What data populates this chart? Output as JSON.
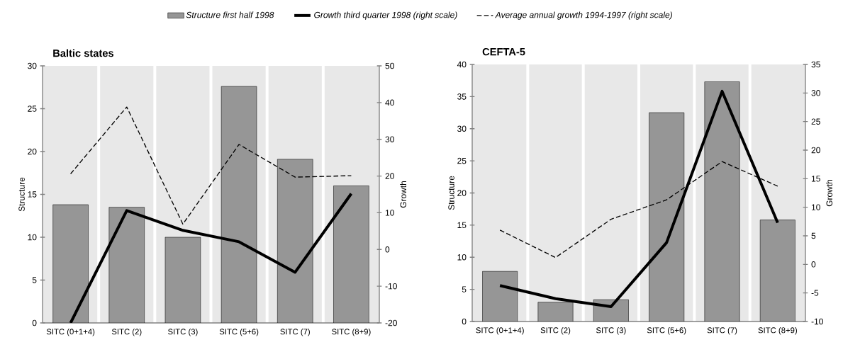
{
  "chart_data": [
    {
      "type": "bar",
      "title": "Baltic states",
      "categories": [
        "SITC (0+1+4)",
        "SITC (2)",
        "SITC (3)",
        "SITC (5+6)",
        "SITC (7)",
        "SITC (8+9)"
      ],
      "ylabel": "Structure",
      "y2label": "Growth",
      "ylim": [
        0,
        30
      ],
      "yticks": [
        0,
        5,
        10,
        15,
        20,
        25,
        30
      ],
      "y2lim": [
        -20,
        50
      ],
      "y2ticks": [
        -20,
        -10,
        0,
        10,
        20,
        30,
        40,
        50
      ],
      "legend": "top",
      "series": [
        {
          "name": "Structure first half 1998",
          "color": "#969696",
          "values": [
            13.8,
            13.5,
            10.0,
            27.6,
            19.1,
            16.0
          ]
        },
        {
          "name": "Growth third quarter 1998 (right scale)",
          "type": "line",
          "axis": "y2",
          "color": "#000000",
          "line_style": "solid",
          "values": [
            -20,
            10.6,
            5.2,
            2.1,
            -6.2,
            15.2
          ]
        },
        {
          "name": "Average annual growth 1994-1997 (right scale)",
          "type": "line",
          "axis": "y2",
          "color": "#000000",
          "line_style": "dashed",
          "values": [
            20.6,
            38.8,
            6.9,
            28.6,
            19.7,
            20.1
          ]
        }
      ]
    },
    {
      "type": "bar",
      "title": "CEFTA-5",
      "categories": [
        "SITC (0+1+4)",
        "SITC (2)",
        "SITC (3)",
        "SITC (5+6)",
        "SITC (7)",
        "SITC (8+9)"
      ],
      "ylabel": "Structure",
      "y2label": "Growth",
      "ylim": [
        0,
        40
      ],
      "yticks": [
        0,
        5,
        10,
        15,
        20,
        25,
        30,
        35,
        40
      ],
      "y2lim": [
        -10,
        35
      ],
      "y2ticks": [
        -10,
        -5,
        0,
        5,
        10,
        15,
        20,
        25,
        30,
        35
      ],
      "series": [
        {
          "color": "#969696",
          "values": [
            7.8,
            3.0,
            3.4,
            32.5,
            37.3,
            15.8
          ]
        },
        {
          "type": "line",
          "axis": "y2",
          "color": "#000000",
          "line_style": "solid",
          "values": [
            -3.7,
            -6.0,
            -7.4,
            3.8,
            30.3,
            7.3
          ]
        },
        {
          "type": "line",
          "axis": "y2",
          "color": "#000000",
          "line_style": "dashed",
          "values": [
            6.0,
            1.2,
            7.9,
            11.3,
            18.0,
            13.7
          ]
        }
      ]
    }
  ]
}
